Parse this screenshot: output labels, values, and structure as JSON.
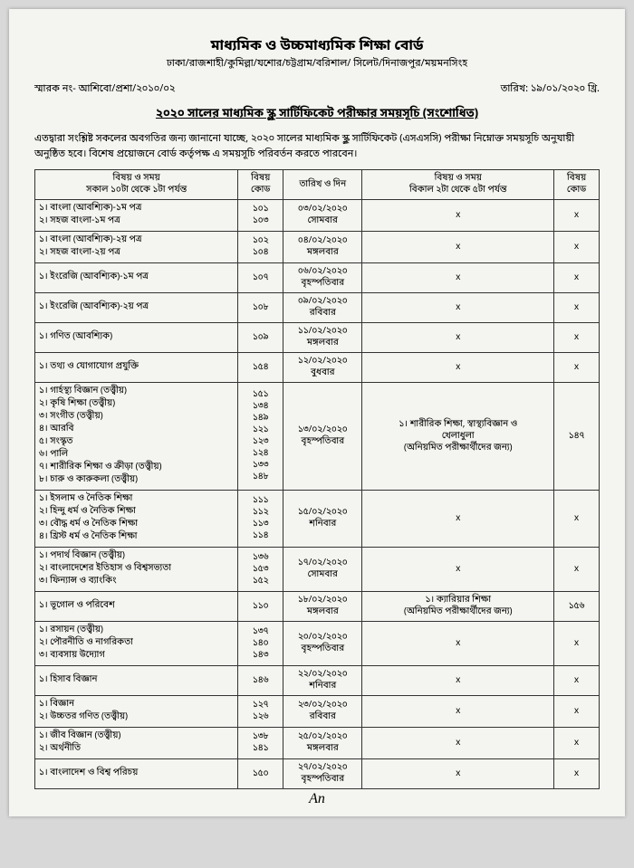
{
  "header": {
    "board": "মাধ্যমিক ও উচ্চমাধ্যমিক শিক্ষা বোর্ড",
    "cities": "ঢাকা/রাজশাহী/কুমিল্লা/যশোর/চট্টগ্রাম/বরিশাল/ সিলেট/দিনাজপুর/ময়মনসিংহ"
  },
  "meta": {
    "ref": "স্মারক নং- আশিবো/প্রশা/২০১০/০২",
    "date": "তারিখ: ১৯/০১/২০২০ খ্রি."
  },
  "title": "২০২০ সালের মাধ্যমিক স্কুল সার্টিফিকেট পরীক্ষার  সময়সূচি (সংশোধিত)",
  "intro": "এতদ্বারা সংশ্লিষ্ট সকলের অবগতির জন্য জানানো যাচ্ছে, ২০২০ সালের মাধ্যমিক স্কুল সার্টিফিকেট (এসএসসি) পরীক্ষা নিম্নোক্ত সময়সূচি অনুযায়ী অনুষ্ঠিত হবে। বিশেষ প্রয়োজনে বোর্ড কর্তৃপক্ষ এ সময়সূচি পরিবর্তন করতে পারবেন।",
  "thead": {
    "c1a": "বিষয় ও সময়",
    "c1b": "সকাল ১০টা থেকে ১টা পর্যন্ত",
    "c2": "বিষয়\nকোড",
    "c3": "তারিখ ও দিন",
    "c4a": "বিষয় ও সময়",
    "c4b": "বিকাল ২টা থেকে ৫টা পর্যন্ত",
    "c5": "বিষয়\nকোড"
  },
  "rows": [
    {
      "subjects": [
        "১। বাংলা (আবশ্যিক)-১ম পত্র",
        "২। সহজ বাংলা-১ম পত্র"
      ],
      "codes": [
        "১০১",
        "১০৩"
      ],
      "date": "০৩/০২/২০২০\nসোমবার",
      "right_sub": "x",
      "right_code": "x"
    },
    {
      "subjects": [
        "১। বাংলা (আবশ্যিক)-২য় পত্র",
        "২। সহজ বাংলা-২য় পত্র"
      ],
      "codes": [
        "১০২",
        "১০৪"
      ],
      "date": "০৪/০২/২০২০\nমঙ্গলবার",
      "right_sub": "x",
      "right_code": "x"
    },
    {
      "subjects": [
        "১। ইংরেজি (আবশ্যিক)-১ম পত্র"
      ],
      "codes": [
        "১০৭"
      ],
      "date": "০৬/০২/২০২০\nবৃহস্পতিবার",
      "right_sub": "x",
      "right_code": "x"
    },
    {
      "subjects": [
        "১। ইংরেজি (আবশ্যিক)-২য় পত্র"
      ],
      "codes": [
        "১০৮"
      ],
      "date": "০৯/০২/২০২০\nরবিবার",
      "right_sub": "x",
      "right_code": "x"
    },
    {
      "subjects": [
        "১। গণিত (আবশ্যিক)"
      ],
      "codes": [
        "১০৯"
      ],
      "date": "১১/০২/২০২০\nমঙ্গলবার",
      "right_sub": "x",
      "right_code": "x"
    },
    {
      "subjects": [
        "১। তথ্য ও  যোগাযোগ প্রযুক্তি"
      ],
      "codes": [
        "১৫৪"
      ],
      "date": "১২/০২/২০২০\nবুধবার",
      "right_sub": "x",
      "right_code": "x"
    },
    {
      "subjects": [
        "১। গার্হস্থ্য বিজ্ঞান (তত্ত্বীয়)",
        "২। কৃষি শিক্ষা (তত্ত্বীয়)",
        "৩। সংগীত (তত্ত্বীয়)",
        "৪। আরবি",
        "৫। সংস্কৃত",
        "৬। পালি",
        "৭। শারীরিক শিক্ষা ও ক্রীড়া (তত্ত্বীয়)",
        "৮। চারু ও কারুকলা (তত্ত্বীয়)"
      ],
      "codes": [
        "১৫১",
        "১৩৪",
        "১৪৯",
        "১২১",
        "১২৩",
        "১২৪",
        "১৩৩",
        "১৪৮"
      ],
      "date": "১৩/০২/২০২০\nবৃহস্পতিবার",
      "right_sub": "১। শারীরিক শিক্ষা, স্বাস্থ্যবিজ্ঞান ও\nখেলাধুলা\n(অনিয়মিত পরীক্ষার্থীদের জন্য)",
      "right_code": "১৪৭"
    },
    {
      "subjects": [
        "১। ইসলাম ও নৈতিক শিক্ষা",
        "২। হিন্দু ধর্ম ও নৈতিক শিক্ষা",
        "৩। বৌদ্ধ ধর্ম ও নৈতিক শিক্ষা",
        "৪। খ্রিস্ট ধর্ম ও নৈতিক শিক্ষা"
      ],
      "codes": [
        "১১১",
        "১১২",
        "১১৩",
        "১১৪"
      ],
      "date": "১৫/০২/২০২০\nশনিবার",
      "right_sub": "x",
      "right_code": "x"
    },
    {
      "subjects": [
        "১। পদার্থ বিজ্ঞান (তত্ত্বীয়)",
        "২। বাংলাদেশের ইতিহাস ও বিশ্বসভ্যতা",
        "৩। ফিন্যান্স ও ব্যাংকিং"
      ],
      "codes": [
        "১৩৬",
        "১৫৩",
        "১৫২"
      ],
      "date": "১৭/০২/২০২০\nসোমবার",
      "right_sub": "x",
      "right_code": "x"
    },
    {
      "subjects": [
        "১। ভূগোল ও পরিবেশ"
      ],
      "codes": [
        "১১০"
      ],
      "date": "১৮/০২/২০২০\nমঙ্গলবার",
      "right_sub": "১। ক্যারিয়ার শিক্ষা\n(অনিয়মিত পরীক্ষার্থীদের জন্য)",
      "right_code": "১৫৬"
    },
    {
      "subjects": [
        "১। রসায়ন (তত্ত্বীয়)",
        "২। পৌরনীতি ও নাগরিকতা",
        "৩। ব্যবসায় উদ্যোগ"
      ],
      "codes": [
        "১৩৭",
        "১৪০",
        "১৪৩"
      ],
      "date": "২০/০২/২০২০\nবৃহস্পতিবার",
      "right_sub": "x",
      "right_code": "x"
    },
    {
      "subjects": [
        "১। হিসাব বিজ্ঞান"
      ],
      "codes": [
        "১৪৬"
      ],
      "date": "২২/০২/২০২০\nশনিবার",
      "right_sub": "x",
      "right_code": "x"
    },
    {
      "subjects": [
        "১। বিজ্ঞান",
        "২। উচ্চতর গণিত (তত্ত্বীয়)"
      ],
      "codes": [
        "১২৭",
        "১২৬"
      ],
      "date": "২৩/০২/২০২০\nরবিবার",
      "right_sub": "x",
      "right_code": "x"
    },
    {
      "subjects": [
        "১। জীব বিজ্ঞান (তত্ত্বীয়)",
        "২। অর্থনীতি"
      ],
      "codes": [
        "১৩৮",
        "১৪১"
      ],
      "date": "২৫/০২/২০২০\nমঙ্গলবার",
      "right_sub": "x",
      "right_code": "x"
    },
    {
      "subjects": [
        "১। বাংলাদেশ ও বিশ্ব পরিচয়"
      ],
      "codes": [
        "১৫০"
      ],
      "date": "২৭/০২/২০২০\nবৃহস্পতিবার",
      "right_sub": "x",
      "right_code": "x"
    }
  ],
  "signature": "An"
}
